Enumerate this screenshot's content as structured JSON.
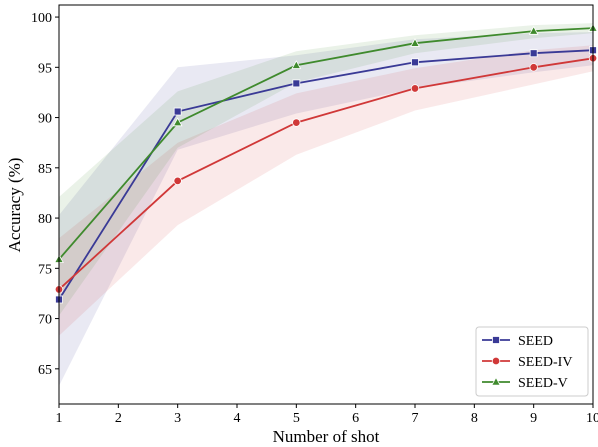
{
  "chart_data": {
    "type": "line",
    "title": "",
    "xlabel": "Number of shot",
    "ylabel": "Accuracy (%)",
    "xlim": [
      1,
      10
    ],
    "ylim": [
      61.5,
      101.2
    ],
    "xticks": [
      1,
      2,
      3,
      4,
      5,
      6,
      7,
      8,
      9,
      10
    ],
    "yticks": [
      65,
      70,
      75,
      80,
      85,
      90,
      95,
      100
    ],
    "grid": false,
    "legend_position": "bottom-right",
    "x": [
      1,
      3,
      5,
      7,
      9,
      10
    ],
    "series": [
      {
        "name": "SEED",
        "color": "#3a3a96",
        "marker": "square",
        "values": [
          71.9,
          90.6,
          93.4,
          95.5,
          96.4,
          96.7
        ],
        "band_lower": [
          63.3,
          86.8,
          90.4,
          92.9,
          94.5,
          95.2
        ],
        "band_upper": [
          80.3,
          95.0,
          96.2,
          97.8,
          98.4,
          98.5
        ]
      },
      {
        "name": "SEED-IV",
        "color": "#d03838",
        "marker": "circle",
        "values": [
          72.9,
          83.7,
          89.5,
          92.9,
          95.0,
          95.9
        ],
        "band_lower": [
          68.3,
          79.3,
          86.3,
          90.7,
          93.3,
          94.6
        ],
        "band_upper": [
          78.0,
          87.5,
          92.4,
          94.9,
          96.7,
          97.2
        ]
      },
      {
        "name": "SEED-V",
        "color": "#3f8a2d",
        "marker": "triangle",
        "values": [
          75.9,
          89.5,
          95.2,
          97.4,
          98.6,
          98.9
        ],
        "band_lower": [
          70.3,
          87.0,
          93.5,
          96.4,
          97.9,
          98.4
        ],
        "band_upper": [
          82.1,
          92.6,
          96.6,
          98.2,
          99.2,
          99.4
        ]
      }
    ]
  }
}
